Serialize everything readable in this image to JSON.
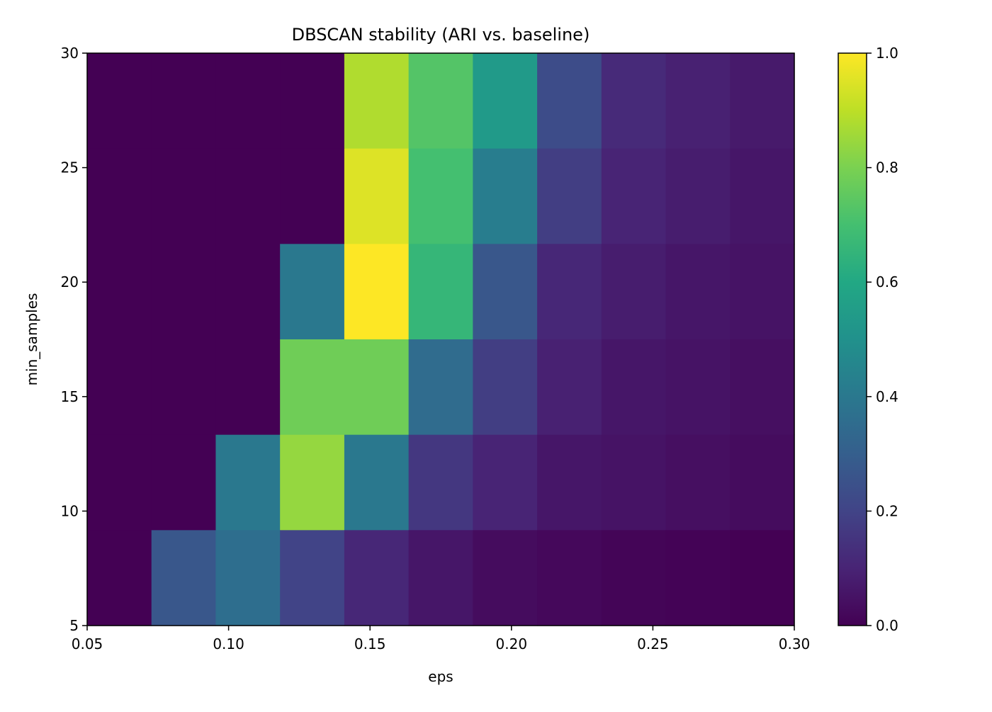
{
  "chart_data": {
    "type": "heatmap",
    "title": "DBSCAN stability (ARI vs. baseline)",
    "xlabel": "eps",
    "ylabel": "min_samples",
    "xlim": [
      0.05,
      0.3
    ],
    "ylim": [
      5,
      30
    ],
    "x_ticks": [
      "0.05",
      "0.10",
      "0.15",
      "0.20",
      "0.25",
      "0.30"
    ],
    "y_ticks": [
      "5",
      "10",
      "15",
      "20",
      "25",
      "30"
    ],
    "colorbar": {
      "min": 0.0,
      "max": 1.0,
      "ticks": [
        "0.0",
        "0.2",
        "0.4",
        "0.6",
        "0.8",
        "1.0"
      ],
      "colormap": "viridis"
    },
    "grid": false,
    "n_cols": 11,
    "n_rows": 6,
    "rows_top_to_bottom": [
      [
        0.0,
        0.0,
        0.0,
        0.0,
        0.88,
        0.73,
        0.54,
        0.23,
        0.12,
        0.09,
        0.07
      ],
      [
        0.0,
        0.0,
        0.0,
        0.0,
        0.95,
        0.7,
        0.42,
        0.18,
        0.1,
        0.08,
        0.06
      ],
      [
        0.0,
        0.0,
        0.0,
        0.4,
        1.0,
        0.66,
        0.27,
        0.11,
        0.08,
        0.06,
        0.05
      ],
      [
        0.0,
        0.0,
        0.0,
        0.78,
        0.78,
        0.35,
        0.18,
        0.09,
        0.06,
        0.05,
        0.04
      ],
      [
        0.0,
        0.0,
        0.4,
        0.84,
        0.4,
        0.16,
        0.1,
        0.06,
        0.05,
        0.04,
        0.03
      ],
      [
        0.0,
        0.27,
        0.36,
        0.2,
        0.11,
        0.06,
        0.03,
        0.02,
        0.01,
        0.005,
        0.0
      ]
    ]
  }
}
